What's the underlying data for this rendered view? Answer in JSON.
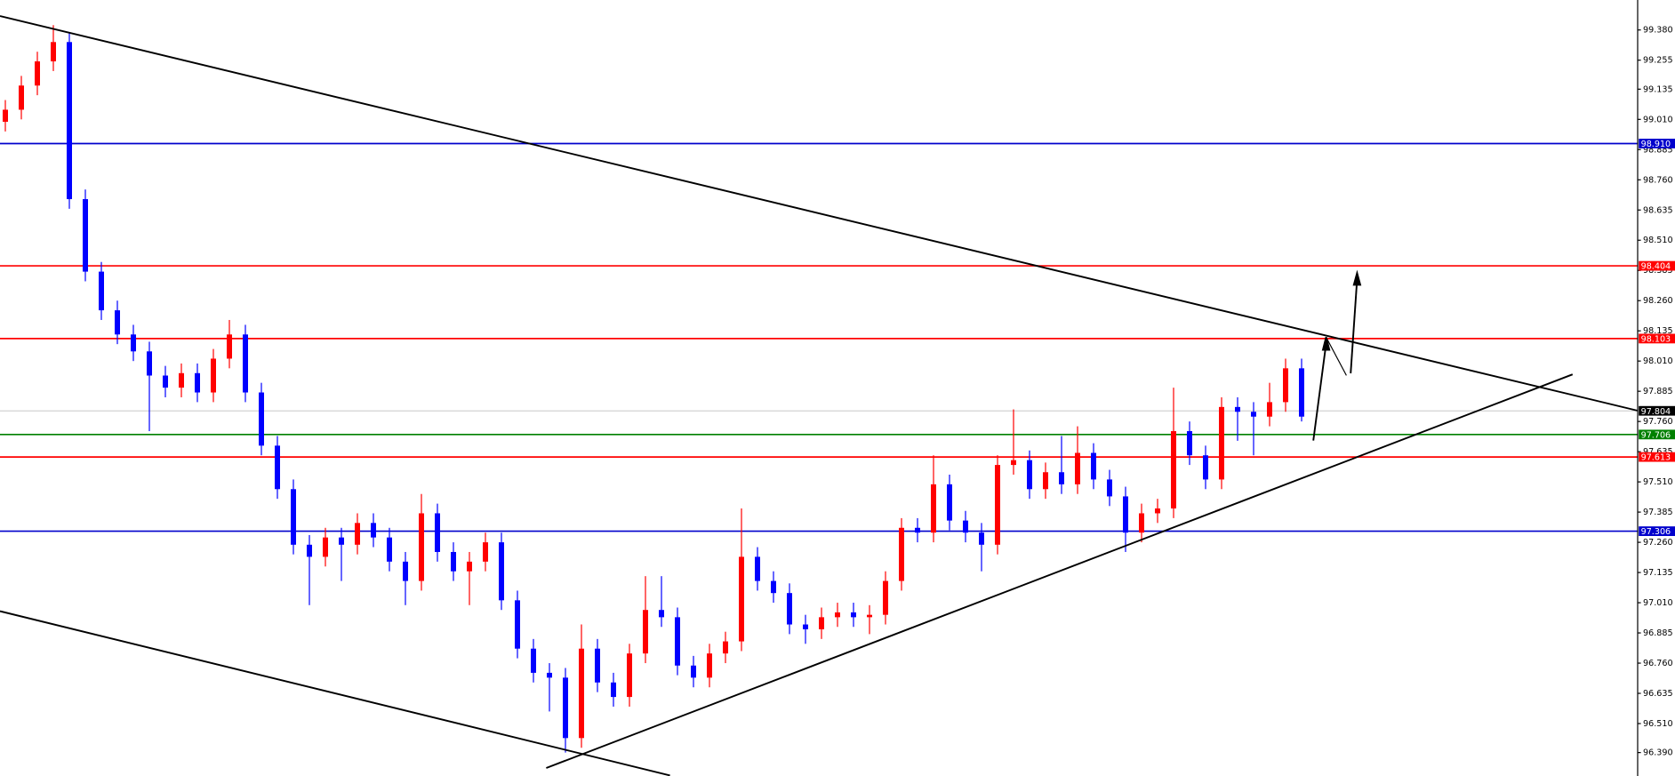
{
  "chart_data": {
    "type": "candlestick",
    "up_color": "#ff0000",
    "down_color": "#0000ff",
    "ylim": [
      96.293,
      99.504
    ],
    "yticks": [
      {
        "value": 99.38,
        "label": "99.380"
      },
      99.255,
      99.135,
      {
        "value": 99.01,
        "label": "99.010"
      },
      98.885,
      {
        "value": 98.76,
        "label": "98.760"
      },
      98.635,
      {
        "value": 98.51,
        "label": "98.510"
      },
      98.385,
      {
        "value": 98.26,
        "label": "98.260"
      },
      98.135,
      {
        "value": 98.01,
        "label": "98.010"
      },
      97.885,
      {
        "value": 97.76,
        "label": "97.760"
      },
      97.635,
      {
        "value": 97.51,
        "label": "97.510"
      },
      97.385,
      {
        "value": 97.26,
        "label": "97.260"
      },
      97.135,
      {
        "value": 97.01,
        "label": "97.010"
      },
      96.885,
      {
        "value": 96.76,
        "label": "96.760"
      },
      96.635,
      {
        "value": 96.51,
        "label": "96.510"
      },
      {
        "value": 96.39,
        "label": "96.390"
      }
    ],
    "levels": [
      {
        "value": 98.91,
        "label": "98.910",
        "color": "#0000cc"
      },
      {
        "value": 98.404,
        "color": "#ff0000"
      },
      {
        "value": 98.103,
        "color": "#ff0000"
      },
      {
        "value": 97.804,
        "color": "#c0c0c0"
      },
      {
        "value": 97.706,
        "color": "#008000"
      },
      {
        "value": 97.613,
        "color": "#ff0000"
      },
      {
        "value": 97.306,
        "color": "#0000cc"
      }
    ],
    "open": [
      99.0,
      99.05,
      99.15,
      99.25,
      99.33,
      98.68,
      98.38,
      98.22,
      98.12,
      98.05,
      97.95,
      97.9,
      97.96,
      97.88,
      98.02,
      98.12,
      97.88,
      97.66,
      97.48,
      97.25,
      97.2,
      97.28,
      97.25,
      97.34,
      97.28,
      97.18,
      97.1,
      97.38,
      97.22,
      97.14,
      97.18,
      97.26,
      97.02,
      96.82,
      96.72,
      96.7,
      96.45,
      96.82,
      96.68,
      96.62,
      96.8,
      96.98,
      96.95,
      96.75,
      96.7,
      96.8,
      96.85,
      97.2,
      97.1,
      97.05,
      96.92,
      96.9,
      96.95,
      96.97,
      96.95,
      96.96,
      97.1,
      97.32,
      97.3,
      97.5,
      97.35,
      97.3,
      97.25,
      97.58,
      97.6,
      97.48,
      97.55,
      97.5,
      97.63,
      97.52,
      97.45,
      97.3,
      97.38,
      97.4,
      97.72,
      97.62,
      97.52,
      97.82,
      97.8,
      97.78,
      97.84,
      97.98
    ],
    "high": [
      99.09,
      99.19,
      99.29,
      99.4,
      99.37,
      98.72,
      98.42,
      98.26,
      98.16,
      98.09,
      97.99,
      98.0,
      98.0,
      98.06,
      98.18,
      98.16,
      97.92,
      97.7,
      97.52,
      97.29,
      97.32,
      97.32,
      97.38,
      97.38,
      97.32,
      97.22,
      97.46,
      97.42,
      97.26,
      97.22,
      97.3,
      97.3,
      97.06,
      96.86,
      96.76,
      96.74,
      96.92,
      96.86,
      96.72,
      96.84,
      97.12,
      97.12,
      96.99,
      96.79,
      96.84,
      96.89,
      97.4,
      97.24,
      97.14,
      97.09,
      96.96,
      96.99,
      97.01,
      97.01,
      97.0,
      97.14,
      97.36,
      97.36,
      97.62,
      97.54,
      97.39,
      97.34,
      97.62,
      97.81,
      97.64,
      97.59,
      97.7,
      97.74,
      97.67,
      97.56,
      97.49,
      97.42,
      97.44,
      97.9,
      97.76,
      97.66,
      97.86,
      97.86,
      97.84,
      97.92,
      98.02,
      98.02
    ],
    "low": [
      98.96,
      99.01,
      99.11,
      99.21,
      98.64,
      98.34,
      98.18,
      98.08,
      98.01,
      97.72,
      97.86,
      97.86,
      97.84,
      97.84,
      97.98,
      97.84,
      97.62,
      97.44,
      97.21,
      97.0,
      97.16,
      97.1,
      97.21,
      97.24,
      97.14,
      97.0,
      97.06,
      97.18,
      97.1,
      97.0,
      97.14,
      96.98,
      96.78,
      96.68,
      96.56,
      96.39,
      96.41,
      96.64,
      96.58,
      96.58,
      96.76,
      96.91,
      96.71,
      96.66,
      96.66,
      96.76,
      96.81,
      97.06,
      97.01,
      96.88,
      96.84,
      96.86,
      96.91,
      96.91,
      96.88,
      96.92,
      97.06,
      97.26,
      97.26,
      97.31,
      97.26,
      97.14,
      97.21,
      97.54,
      97.44,
      97.44,
      97.46,
      97.46,
      97.48,
      97.41,
      97.22,
      97.26,
      97.34,
      97.36,
      97.58,
      97.48,
      97.48,
      97.68,
      97.62,
      97.74,
      97.8,
      97.76
    ],
    "close": [
      99.05,
      99.15,
      99.25,
      99.33,
      98.68,
      98.38,
      98.22,
      98.12,
      98.05,
      97.95,
      97.9,
      97.96,
      97.88,
      98.02,
      98.12,
      97.88,
      97.66,
      97.48,
      97.25,
      97.2,
      97.28,
      97.25,
      97.34,
      97.28,
      97.18,
      97.1,
      97.38,
      97.22,
      97.14,
      97.18,
      97.26,
      97.02,
      96.82,
      96.72,
      96.7,
      96.45,
      96.82,
      96.68,
      96.62,
      96.8,
      96.98,
      96.95,
      96.75,
      96.7,
      96.8,
      96.85,
      97.2,
      97.1,
      97.05,
      96.92,
      96.9,
      96.95,
      96.97,
      96.95,
      96.96,
      97.1,
      97.32,
      97.3,
      97.5,
      97.35,
      97.3,
      97.25,
      97.58,
      97.6,
      97.48,
      97.55,
      97.5,
      97.63,
      97.52,
      97.45,
      97.3,
      97.38,
      97.4,
      97.72,
      97.62,
      97.52,
      97.82,
      97.8,
      97.78,
      97.84,
      97.98,
      97.78
    ]
  }
}
